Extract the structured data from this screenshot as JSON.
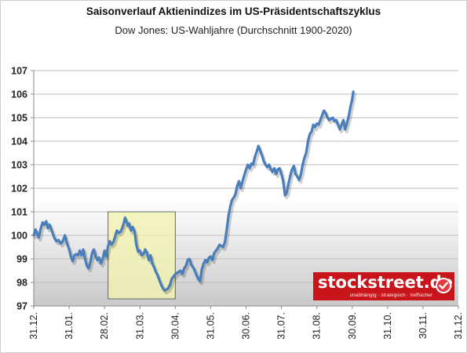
{
  "chart_data": {
    "type": "line",
    "title": "Saisonverlauf Aktienindizes im US-Präsidentschaftszyklus",
    "subtitle": "Dow Jones: US-Wahljahre (Durchschnitt 1900-2020)",
    "xlabel": "",
    "ylabel": "",
    "ylim": [
      97,
      107
    ],
    "yticks": [
      97,
      98,
      99,
      100,
      101,
      102,
      103,
      104,
      105,
      106,
      107
    ],
    "xticks": [
      "31.12.",
      "31.01.",
      "28.02.",
      "31.03.",
      "30.04.",
      "31.05.",
      "30.06.",
      "31.07.",
      "31.08.",
      "30.09.",
      "31.10.",
      "30.11.",
      "31.12."
    ],
    "grid": true,
    "legend": "none",
    "highlight": {
      "x_range": [
        2.1,
        4.0
      ],
      "y_range": [
        97.3,
        101
      ]
    },
    "series": [
      {
        "color": "#4a7ebb",
        "points": [
          [
            0.0,
            100.0
          ],
          [
            0.05,
            100.25
          ],
          [
            0.1,
            100.05
          ],
          [
            0.14,
            99.9
          ],
          [
            0.2,
            100.3
          ],
          [
            0.25,
            100.55
          ],
          [
            0.3,
            100.45
          ],
          [
            0.35,
            100.6
          ],
          [
            0.4,
            100.3
          ],
          [
            0.45,
            100.45
          ],
          [
            0.52,
            100.15
          ],
          [
            0.58,
            99.9
          ],
          [
            0.64,
            99.75
          ],
          [
            0.7,
            99.8
          ],
          [
            0.76,
            99.65
          ],
          [
            0.82,
            99.75
          ],
          [
            0.88,
            100.0
          ],
          [
            0.93,
            99.7
          ],
          [
            1.0,
            99.4
          ],
          [
            1.05,
            99.1
          ],
          [
            1.1,
            98.9
          ],
          [
            1.15,
            99.15
          ],
          [
            1.2,
            99.2
          ],
          [
            1.25,
            99.15
          ],
          [
            1.3,
            99.35
          ],
          [
            1.35,
            99.15
          ],
          [
            1.4,
            99.4
          ],
          [
            1.45,
            99.0
          ],
          [
            1.5,
            98.7
          ],
          [
            1.55,
            98.6
          ],
          [
            1.6,
            98.85
          ],
          [
            1.65,
            99.25
          ],
          [
            1.7,
            99.4
          ],
          [
            1.75,
            99.1
          ],
          [
            1.8,
            98.95
          ],
          [
            1.85,
            99.05
          ],
          [
            1.9,
            98.8
          ],
          [
            1.95,
            99.0
          ],
          [
            2.0,
            99.35
          ],
          [
            2.05,
            99.1
          ],
          [
            2.1,
            99.55
          ],
          [
            2.15,
            99.75
          ],
          [
            2.2,
            99.6
          ],
          [
            2.25,
            99.7
          ],
          [
            2.3,
            99.95
          ],
          [
            2.35,
            100.2
          ],
          [
            2.4,
            100.1
          ],
          [
            2.45,
            100.15
          ],
          [
            2.5,
            100.3
          ],
          [
            2.55,
            100.55
          ],
          [
            2.58,
            100.75
          ],
          [
            2.62,
            100.6
          ],
          [
            2.66,
            100.4
          ],
          [
            2.7,
            100.5
          ],
          [
            2.75,
            100.2
          ],
          [
            2.8,
            100.35
          ],
          [
            2.85,
            100.15
          ],
          [
            2.9,
            99.6
          ],
          [
            2.95,
            99.3
          ],
          [
            3.0,
            99.35
          ],
          [
            3.05,
            99.15
          ],
          [
            3.1,
            99.2
          ],
          [
            3.15,
            99.4
          ],
          [
            3.2,
            99.25
          ],
          [
            3.25,
            98.95
          ],
          [
            3.3,
            99.15
          ],
          [
            3.35,
            98.8
          ],
          [
            3.4,
            98.65
          ],
          [
            3.45,
            98.45
          ],
          [
            3.5,
            98.3
          ],
          [
            3.55,
            98.1
          ],
          [
            3.6,
            97.9
          ],
          [
            3.65,
            97.75
          ],
          [
            3.7,
            97.65
          ],
          [
            3.75,
            97.7
          ],
          [
            3.8,
            97.75
          ],
          [
            3.85,
            97.9
          ],
          [
            3.9,
            98.15
          ],
          [
            3.95,
            98.25
          ],
          [
            4.0,
            98.35
          ],
          [
            4.05,
            98.4
          ],
          [
            4.1,
            98.45
          ],
          [
            4.15,
            98.5
          ],
          [
            4.2,
            98.35
          ],
          [
            4.25,
            98.6
          ],
          [
            4.3,
            98.7
          ],
          [
            4.35,
            98.95
          ],
          [
            4.4,
            99.0
          ],
          [
            4.45,
            98.75
          ],
          [
            4.5,
            98.65
          ],
          [
            4.55,
            98.5
          ],
          [
            4.6,
            98.3
          ],
          [
            4.65,
            98.15
          ],
          [
            4.7,
            98.05
          ],
          [
            4.75,
            98.55
          ],
          [
            4.8,
            98.8
          ],
          [
            4.85,
            98.95
          ],
          [
            4.9,
            98.85
          ],
          [
            4.95,
            99.05
          ],
          [
            5.0,
            99.1
          ],
          [
            5.05,
            98.95
          ],
          [
            5.1,
            99.25
          ],
          [
            5.15,
            99.35
          ],
          [
            5.2,
            99.45
          ],
          [
            5.25,
            99.6
          ],
          [
            5.3,
            99.55
          ],
          [
            5.35,
            99.5
          ],
          [
            5.4,
            99.7
          ],
          [
            5.45,
            100.2
          ],
          [
            5.5,
            100.8
          ],
          [
            5.55,
            101.2
          ],
          [
            5.6,
            101.5
          ],
          [
            5.65,
            101.6
          ],
          [
            5.7,
            101.75
          ],
          [
            5.75,
            102.1
          ],
          [
            5.8,
            102.3
          ],
          [
            5.85,
            102.0
          ],
          [
            5.9,
            102.3
          ],
          [
            5.95,
            102.55
          ],
          [
            6.0,
            102.8
          ],
          [
            6.05,
            103.0
          ],
          [
            6.1,
            102.85
          ],
          [
            6.15,
            103.05
          ],
          [
            6.2,
            103.0
          ],
          [
            6.25,
            103.35
          ],
          [
            6.3,
            103.55
          ],
          [
            6.35,
            103.8
          ],
          [
            6.4,
            103.6
          ],
          [
            6.45,
            103.4
          ],
          [
            6.5,
            103.15
          ],
          [
            6.55,
            103.0
          ],
          [
            6.6,
            102.9
          ],
          [
            6.65,
            103.0
          ],
          [
            6.7,
            102.8
          ],
          [
            6.75,
            102.7
          ],
          [
            6.8,
            102.85
          ],
          [
            6.85,
            102.6
          ],
          [
            6.9,
            102.8
          ],
          [
            6.95,
            102.85
          ],
          [
            7.0,
            102.6
          ],
          [
            7.05,
            102.3
          ],
          [
            7.1,
            101.7
          ],
          [
            7.15,
            101.8
          ],
          [
            7.2,
            102.2
          ],
          [
            7.25,
            102.55
          ],
          [
            7.3,
            102.8
          ],
          [
            7.35,
            102.95
          ],
          [
            7.4,
            102.6
          ],
          [
            7.45,
            102.5
          ],
          [
            7.5,
            102.35
          ],
          [
            7.55,
            102.6
          ],
          [
            7.6,
            103.0
          ],
          [
            7.65,
            103.3
          ],
          [
            7.7,
            103.5
          ],
          [
            7.75,
            104.0
          ],
          [
            7.8,
            104.3
          ],
          [
            7.85,
            104.4
          ],
          [
            7.9,
            104.7
          ],
          [
            7.95,
            104.6
          ],
          [
            8.0,
            104.75
          ],
          [
            8.05,
            104.7
          ],
          [
            8.1,
            104.9
          ],
          [
            8.15,
            105.1
          ],
          [
            8.2,
            105.3
          ],
          [
            8.25,
            105.2
          ],
          [
            8.3,
            105.0
          ],
          [
            8.35,
            104.9
          ],
          [
            8.4,
            104.95
          ],
          [
            8.45,
            105.0
          ],
          [
            8.5,
            104.85
          ],
          [
            8.55,
            104.9
          ],
          [
            8.6,
            104.7
          ],
          [
            8.65,
            104.5
          ],
          [
            8.7,
            104.7
          ],
          [
            8.75,
            104.9
          ],
          [
            8.8,
            104.5
          ],
          [
            8.85,
            104.75
          ],
          [
            8.9,
            105.05
          ],
          [
            8.95,
            105.45
          ],
          [
            9.0,
            105.8
          ],
          [
            9.03,
            106.1
          ]
        ]
      }
    ]
  },
  "logo": {
    "name": "stockstreet.de",
    "slogan": "unabhängig · strategisch · treffsicher",
    "icon": "checkmark-icon",
    "color": "#c8151b"
  }
}
